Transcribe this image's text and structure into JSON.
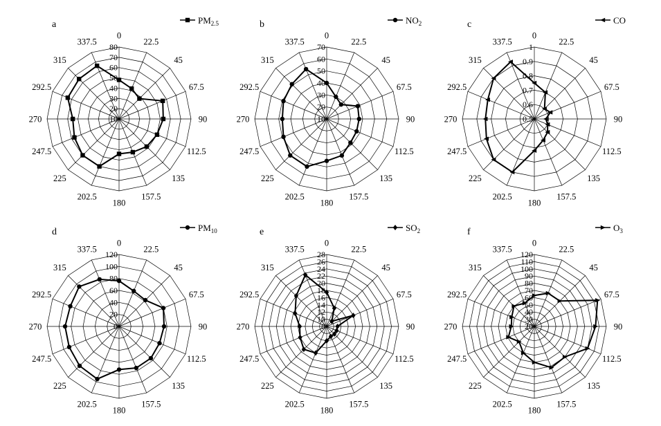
{
  "chart_data": [
    {
      "type": "radar",
      "panel_letter": "a",
      "legend": {
        "base": "PM",
        "sub": "2.5"
      },
      "marker": "square",
      "directions": [
        "0",
        "22.5",
        "45",
        "67.5",
        "90",
        "112.5",
        "135",
        "157.5",
        "180",
        "202.5",
        "225",
        "247.5",
        "270",
        "292.5",
        "315",
        "337.5"
      ],
      "radial_range": [
        10,
        80
      ],
      "radial_ticks": [
        10,
        20,
        30,
        40,
        50,
        60,
        70,
        80
      ],
      "values": [
        48,
        42,
        38,
        56,
        53,
        50,
        48,
        45,
        44,
        60,
        60,
        57,
        55,
        64,
        65,
        66
      ]
    },
    {
      "type": "radar",
      "panel_letter": "b",
      "legend": {
        "base": "NO",
        "sub": "2"
      },
      "marker": "circle",
      "directions": [
        "0",
        "22.5",
        "45",
        "67.5",
        "90",
        "112.5",
        "135",
        "157.5",
        "180",
        "202.5",
        "225",
        "247.5",
        "270",
        "292.5",
        "315",
        "337.5"
      ],
      "radial_range": [
        10,
        70
      ],
      "radial_ticks": [
        10,
        20,
        30,
        40,
        50,
        60,
        70
      ],
      "values": [
        40,
        30,
        27,
        38,
        37,
        37,
        38,
        43,
        45,
        53,
        53,
        49,
        47,
        49,
        51,
        55
      ]
    },
    {
      "type": "radar",
      "panel_letter": "c",
      "legend": {
        "base": "CO",
        "sub": ""
      },
      "marker": "triangle-left",
      "directions": [
        "0",
        "22.5",
        "45",
        "67.5",
        "90",
        "112.5",
        "135",
        "157.5",
        "180",
        "202.5",
        "225",
        "247.5",
        "270",
        "292.5",
        "315",
        "337.5"
      ],
      "radial_range": [
        0.5,
        1.0
      ],
      "radial_ticks": [
        0.5,
        0.6,
        0.7,
        0.8,
        0.9,
        1.0
      ],
      "values": [
        0.75,
        0.7,
        0.6,
        0.62,
        0.58,
        0.6,
        0.63,
        0.66,
        0.72,
        0.9,
        0.9,
        0.86,
        0.84,
        0.85,
        0.9,
        0.93
      ]
    },
    {
      "type": "radar",
      "panel_letter": "d",
      "legend": {
        "base": "PM",
        "sub": "10"
      },
      "marker": "circle",
      "directions": [
        "0",
        "22.5",
        "45",
        "67.5",
        "90",
        "112.5",
        "135",
        "157.5",
        "180",
        "202.5",
        "225",
        "247.5",
        "270",
        "292.5",
        "315",
        "337.5"
      ],
      "radial_range": [
        0,
        120
      ],
      "radial_ticks": [
        0,
        20,
        40,
        60,
        80,
        100,
        120
      ],
      "values": [
        76,
        64,
        62,
        80,
        75,
        73,
        75,
        75,
        72,
        95,
        93,
        90,
        90,
        88,
        94,
        85
      ]
    },
    {
      "type": "radar",
      "panel_letter": "e",
      "legend": {
        "base": "SO",
        "sub": "2"
      },
      "marker": "diamond",
      "directions": [
        "0",
        "22.5",
        "45",
        "67.5",
        "90",
        "112.5",
        "135",
        "157.5",
        "180",
        "202.5",
        "225",
        "247.5",
        "270",
        "292.5",
        "315",
        "337.5"
      ],
      "radial_range": [
        8,
        28
      ],
      "radial_ticks": [
        8,
        10,
        12,
        14,
        16,
        18,
        20,
        22,
        24,
        26,
        28
      ],
      "values": [
        17.5,
        13.5,
        10,
        16,
        11,
        11,
        11,
        11,
        12,
        16,
        17,
        16,
        15.5,
        17.5,
        20,
        23.5
      ]
    },
    {
      "type": "radar",
      "panel_letter": "f",
      "legend": {
        "base": "O",
        "sub": "3"
      },
      "marker": "triangle-right",
      "directions": [
        "0",
        "22.5",
        "45",
        "67.5",
        "90",
        "112.5",
        "135",
        "157.5",
        "180",
        "202.5",
        "225",
        "247.5",
        "270",
        "292.5",
        "315",
        "337.5"
      ],
      "radial_range": [
        20,
        120
      ],
      "radial_ticks": [
        20,
        30,
        40,
        50,
        60,
        70,
        80,
        90,
        100,
        110,
        120
      ],
      "values": [
        63,
        70,
        70,
        115,
        105,
        100,
        80,
        82,
        70,
        60,
        50,
        59,
        52,
        54,
        60,
        55
      ]
    }
  ]
}
